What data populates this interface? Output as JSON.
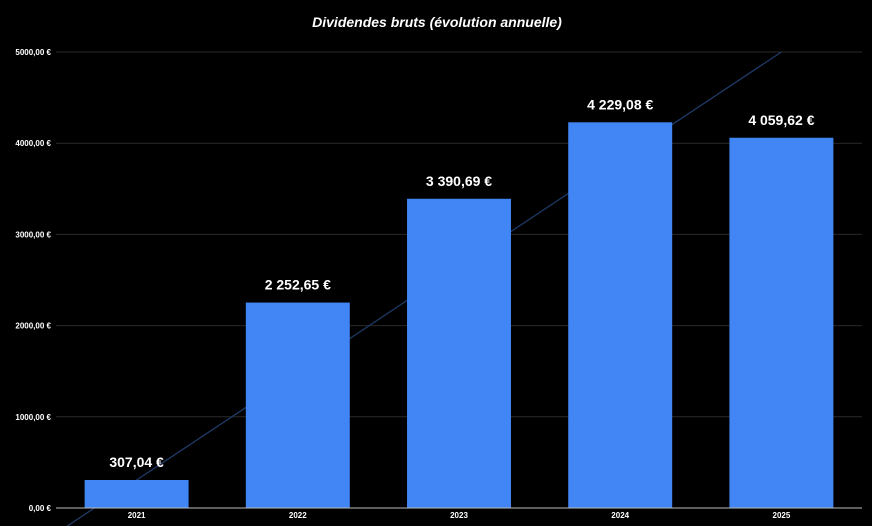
{
  "chart_data": {
    "type": "bar",
    "title": "Dividendes bruts (évolution annuelle)",
    "xlabel": "",
    "ylabel": "",
    "categories": [
      "2021",
      "2022",
      "2023",
      "2024",
      "2025"
    ],
    "values": [
      307.04,
      2252.65,
      3390.69,
      4229.08,
      4059.62
    ],
    "data_labels": [
      "307,04 €",
      "2 252,65 €",
      "3 390,69 €",
      "4 229,08 €",
      "4 059,62 €"
    ],
    "ylim": [
      0,
      5000
    ],
    "yticks": [
      0,
      1000,
      2000,
      3000,
      4000,
      5000
    ],
    "ytick_labels": [
      "0,00 €",
      "1000,00 €",
      "2000,00 €",
      "3000,00 €",
      "4000,00 €",
      "5000,00 €"
    ],
    "grid": true,
    "legend": "none",
    "trendline": {
      "type": "linear",
      "start": {
        "x": "2021",
        "y": 307
      },
      "end": {
        "x": "2025",
        "y": 5000
      }
    },
    "colors": {
      "background": "#000000",
      "bar": "#4285f4",
      "grid": "#2a2a2a",
      "axis": "#bbbbbb",
      "trendline": "#1e3a66",
      "text": "#ffffff"
    }
  }
}
